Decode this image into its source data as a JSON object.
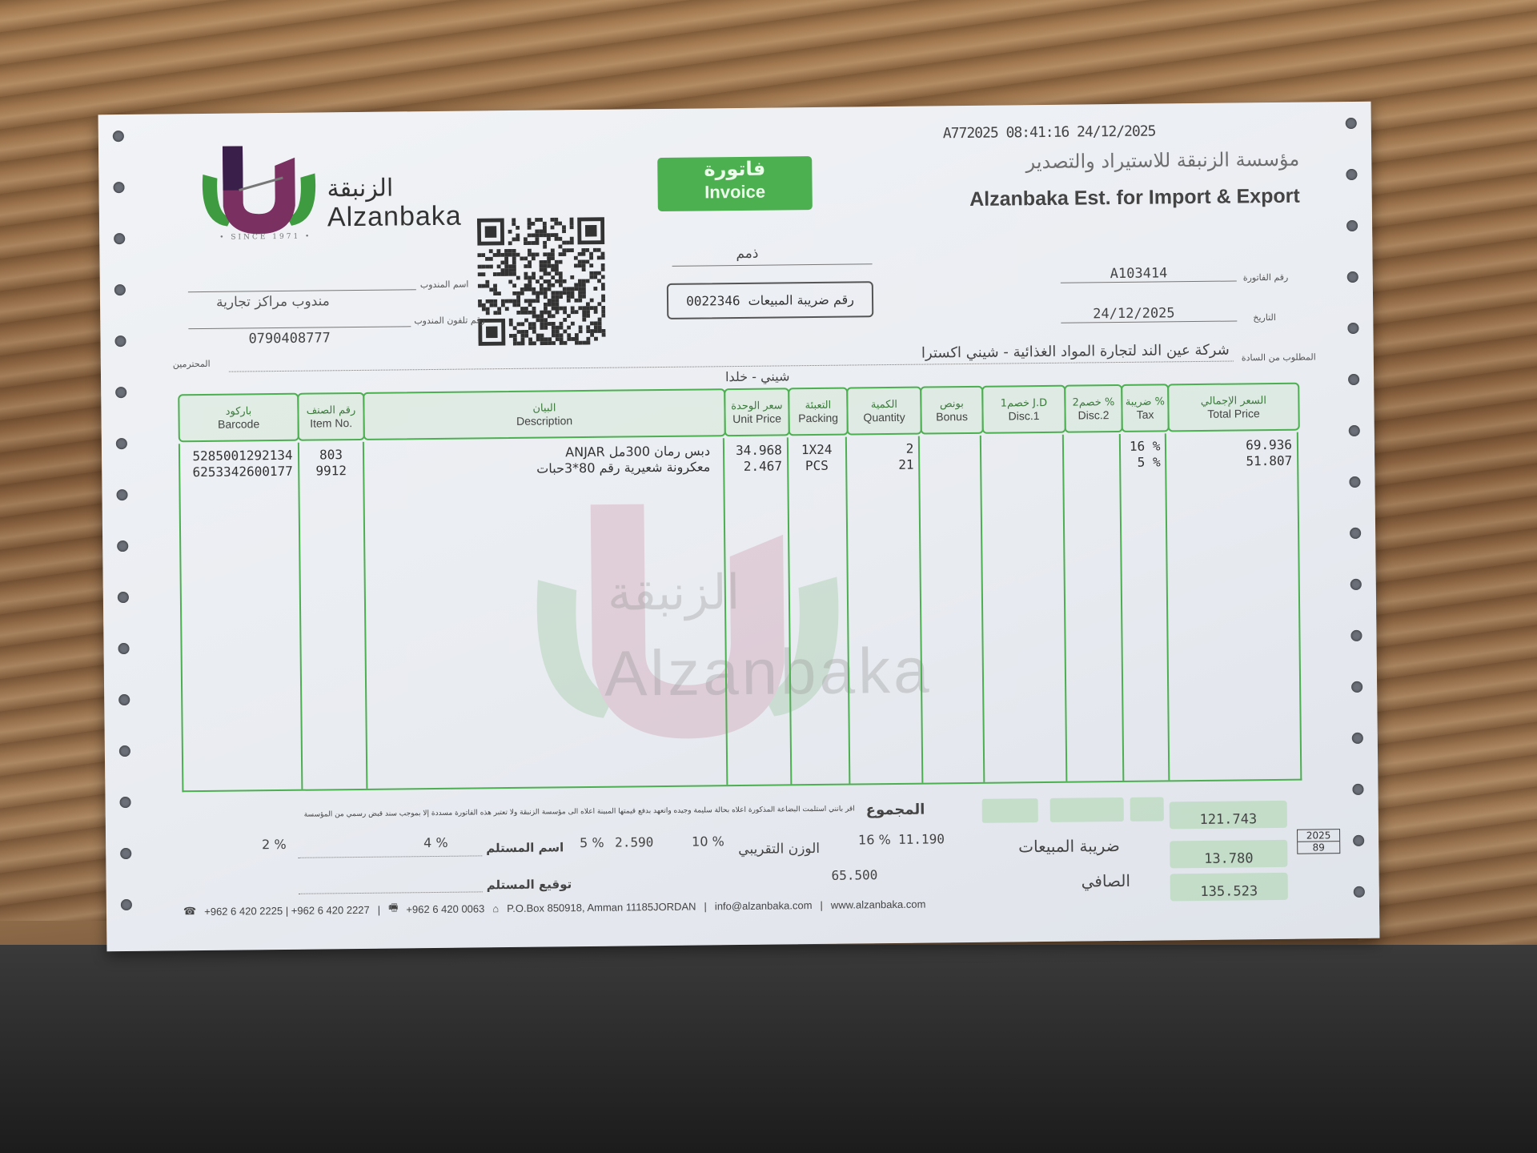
{
  "company": {
    "logo_ar": "الزنبقة",
    "logo_en": "Alzanbaka",
    "since": "• SINCE 1971 •",
    "name_ar": "مؤسسة الزنبقة للاستيراد والتصدير",
    "name_en": "Alzanbaka Est. for Import & Export",
    "print_stamp": "A772025 08:41:16 24/12/2025"
  },
  "badge": {
    "ar": "فاتورة",
    "en": "Invoice"
  },
  "account_type": "ذمم",
  "sales_tax_no": {
    "label": "رقم ضريبة المبيعات",
    "value": "0022346"
  },
  "invoice": {
    "number_label": "رقم الفاتورة",
    "number": "A103414",
    "date_label": "التاريخ",
    "date": "24/12/2025"
  },
  "salesperson": {
    "name_label": "اسم المندوب",
    "name": "مندوب مراكز تجارية",
    "phone_label": "رقم تلفون المندوب",
    "phone": "0790408777"
  },
  "customer": {
    "label": "المطلوب من السادة",
    "name": "شركة عين الند لتجارة المواد الغذائية - شيني اكسترا",
    "branch": "شيني - خلدا",
    "suffix": "المحترمين"
  },
  "table": {
    "columns": [
      {
        "ar": "باركود",
        "en": "Barcode"
      },
      {
        "ar": "رقم الصنف",
        "en": "Item No."
      },
      {
        "ar": "البيان",
        "en": "Description"
      },
      {
        "ar": "سعر الوحدة",
        "en": "Unit Price"
      },
      {
        "ar": "التعبئة",
        "en": "Packing"
      },
      {
        "ar": "الكمية",
        "en": "Quantity"
      },
      {
        "ar": "بونص",
        "en": "Bonus"
      },
      {
        "ar": "خصم1 J.D",
        "en": "Disc.1"
      },
      {
        "ar": "خصم2 %",
        "en": "Disc.2"
      },
      {
        "ar": "ضريبة %",
        "en": "Tax"
      },
      {
        "ar": "السعر الإجمالي",
        "en": "Total Price"
      }
    ],
    "rows": [
      {
        "barcode": "5285001292134",
        "item": "803",
        "desc": "دبس رمان 300مل ANJAR",
        "unit_price": "34.968",
        "packing": "1X24",
        "qty": "2",
        "bonus": "",
        "disc1": "",
        "disc2": "",
        "tax": "16 %",
        "total": "69.936"
      },
      {
        "barcode": "6253342600177",
        "item": "9912",
        "desc": "معكرونة شعيرية رقم 80*3حبات",
        "unit_price": "2.467",
        "packing": "PCS",
        "qty": "21",
        "bonus": "",
        "disc1": "",
        "disc2": "",
        "tax": "5 %",
        "total": "51.807"
      }
    ]
  },
  "footer": {
    "total_label": "المجموع",
    "disclaimer": "أقر بأنني استلمت البضاعة المذكورة أعلاه بحالة سليمة وجيده وأتعهد بدفع قيمتها المبينة أعلاه الى مؤسسة الزنبقة ولا تعتبر هذه الفاتورة مسددة إلا بموجب سند قبض رسمي من المؤسسة",
    "tax_2": "2 %",
    "tax_4": "4 %",
    "tax_5": "5 %",
    "tax_5_amount": "2.590",
    "tax_10": "10 %",
    "tax_16": "16 %",
    "tax_16_amount": "11.190",
    "receiver_name_label": "اسم المستلم",
    "receiver_sig_label": "توقيع المستلم",
    "weight_label": "الوزن التقريبي",
    "weight": "65.500",
    "sales_tax_label": "ضريبة المبيعات",
    "net_label": "الصافي",
    "subtotal": "121.743",
    "sales_tax": "13.780",
    "net": "135.523",
    "page_year": "2025",
    "page_no": "89"
  },
  "contact": {
    "phones": "+962 6 420 2225 | +962 6 420 2227",
    "fax": "+962 6 420 0063",
    "address": "P.O.Box 850918, Amman 11185JORDAN",
    "email": "info@alzanbaka.com",
    "web": "www.alzanbaka.com"
  },
  "colors": {
    "accent": "#4caf50",
    "logo_purple": "#5a2a5a",
    "logo_red": "#b03a5b",
    "logo_green": "#3f9b3f"
  }
}
